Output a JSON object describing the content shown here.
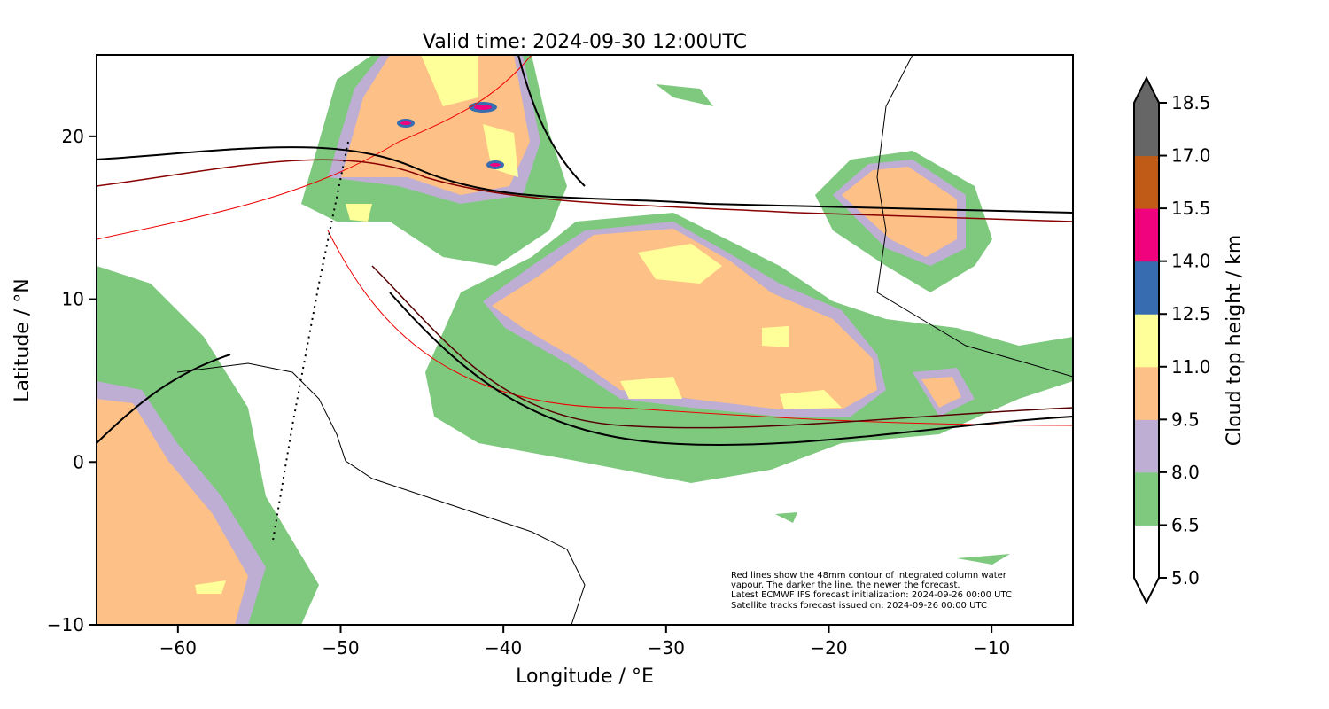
{
  "title": "Valid time: 2024-09-30 12:00UTC",
  "chart_data": {
    "type": "heatmap",
    "title": "Valid time: 2024-09-30 12:00UTC",
    "xlabel": "Longitude / °E",
    "ylabel": "Latitude / °N",
    "xlim": [
      -65,
      -5
    ],
    "ylim": [
      -10,
      25
    ],
    "xticks": [
      -60,
      -50,
      -40,
      -30,
      -20,
      -10
    ],
    "xtick_labels": [
      "−60",
      "−50",
      "−40",
      "−30",
      "−20",
      "−10"
    ],
    "yticks": [
      -10,
      0,
      10,
      20
    ],
    "ytick_labels": [
      "−10",
      "0",
      "10",
      "20"
    ],
    "colorbar": {
      "label": "Cloud top height / km",
      "levels": [
        5.0,
        6.5,
        8.0,
        9.5,
        11.0,
        12.5,
        14.0,
        15.5,
        17.0,
        18.5
      ],
      "tick_labels": [
        "5.0",
        "6.5",
        "8.0",
        "9.5",
        "11.0",
        "12.5",
        "14.0",
        "15.5",
        "17.0",
        "18.5"
      ],
      "colors": [
        "#ffffff",
        "#7fc97f",
        "#beaed4",
        "#fdc086",
        "#ffff99",
        "#386cb0",
        "#f0027f",
        "#bf5b17",
        "#666666"
      ],
      "extend": "both"
    },
    "annotation": [
      "Red lines show the 48mm contour of integrated column water",
      "vapour. The darker the line, the newer the forecast.",
      "Latest ECMWF IFS forecast initialization: 2024-09-26 00:00 UTC",
      "Satellite tracks forecast issued on: 2024-09-26 00:00 UTC"
    ]
  }
}
